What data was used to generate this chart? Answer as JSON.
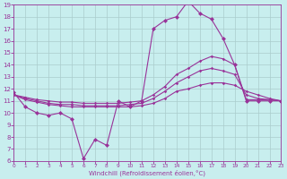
{
  "bg_color": "#c8eeee",
  "line_color": "#993399",
  "grid_color": "#aacccc",
  "xlim": [
    0,
    23
  ],
  "ylim": [
    6,
    19
  ],
  "xticks": [
    0,
    1,
    2,
    3,
    4,
    5,
    6,
    7,
    8,
    9,
    10,
    11,
    12,
    13,
    14,
    15,
    16,
    17,
    18,
    19,
    20,
    21,
    22,
    23
  ],
  "yticks": [
    6,
    7,
    8,
    9,
    10,
    11,
    12,
    13,
    14,
    15,
    16,
    17,
    18,
    19
  ],
  "xlabel": "Windchill (Refroidissement éolien,°C)",
  "line_main_x": [
    0,
    1,
    2,
    3,
    4,
    5,
    6,
    7,
    8,
    9,
    10,
    11,
    12,
    13,
    14,
    15,
    16,
    17,
    18,
    19,
    20,
    21,
    22,
    23
  ],
  "line_main_y": [
    11.7,
    10.5,
    10.0,
    9.8,
    10.0,
    9.5,
    6.2,
    7.8,
    7.3,
    11.0,
    10.5,
    11.0,
    17.0,
    17.7,
    18.0,
    19.3,
    18.3,
    17.8,
    16.2,
    14.0,
    11.0,
    11.0,
    11.0,
    11.0
  ],
  "line2_x": [
    0,
    1,
    2,
    3,
    4,
    5,
    6,
    7,
    8,
    9,
    10,
    11,
    12,
    13,
    14,
    15,
    16,
    17,
    18,
    19,
    20,
    21,
    22,
    23
  ],
  "line2_y": [
    11.5,
    11.3,
    11.1,
    11.0,
    10.9,
    10.9,
    10.8,
    10.8,
    10.8,
    10.8,
    10.9,
    11.0,
    11.5,
    12.2,
    13.2,
    13.7,
    14.3,
    14.7,
    14.5,
    14.0,
    11.1,
    11.1,
    11.1,
    11.0
  ],
  "line3_x": [
    0,
    1,
    2,
    3,
    4,
    5,
    6,
    7,
    8,
    9,
    10,
    11,
    12,
    13,
    14,
    15,
    16,
    17,
    18,
    19,
    20,
    21,
    22,
    23
  ],
  "line3_y": [
    11.5,
    11.2,
    11.0,
    10.8,
    10.7,
    10.7,
    10.6,
    10.6,
    10.6,
    10.6,
    10.7,
    10.8,
    11.2,
    11.8,
    12.5,
    13.0,
    13.5,
    13.7,
    13.5,
    13.2,
    11.5,
    11.2,
    11.1,
    11.0
  ],
  "line4_x": [
    0,
    1,
    2,
    3,
    4,
    5,
    6,
    7,
    8,
    9,
    10,
    11,
    12,
    13,
    14,
    15,
    16,
    17,
    18,
    19,
    20,
    21,
    22,
    23
  ],
  "line4_y": [
    11.5,
    11.1,
    10.9,
    10.7,
    10.6,
    10.5,
    10.5,
    10.5,
    10.5,
    10.5,
    10.5,
    10.6,
    10.8,
    11.2,
    11.8,
    12.0,
    12.3,
    12.5,
    12.5,
    12.3,
    11.8,
    11.5,
    11.2,
    11.0
  ]
}
